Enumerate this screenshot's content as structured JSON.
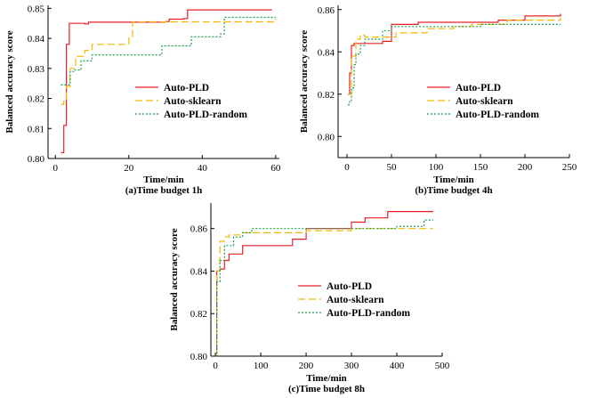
{
  "chart_data": [
    {
      "type": "line",
      "caption": "(a)Time budget 1h",
      "xlabel": "Time/min",
      "ylabel": "Balanced accuracy score",
      "xlim": [
        -2,
        61
      ],
      "ylim": [
        0.8,
        0.851
      ],
      "xticks": [
        0,
        20,
        40,
        60
      ],
      "yticks": [
        0.8,
        0.81,
        0.82,
        0.83,
        0.84,
        0.85
      ],
      "ytick_labels": [
        "0.80",
        "0.81",
        "0.82",
        "0.83",
        "0.84",
        "0.85"
      ],
      "legend_position": "center-right",
      "series": [
        {
          "name": "Auto-PLD",
          "color": "#e8202a",
          "dash": "solid",
          "x": [
            1.5,
            2.3,
            3.0,
            3.8,
            8,
            9,
            30,
            31,
            35,
            36,
            59
          ],
          "y": [
            0.802,
            0.811,
            0.838,
            0.845,
            0.8448,
            0.8454,
            0.8456,
            0.8464,
            0.8466,
            0.8495,
            0.8495
          ]
        },
        {
          "name": "Auto-sklearn",
          "color": "#f5b800",
          "dash": "dash",
          "x": [
            1.5,
            2.3,
            3.0,
            4.0,
            5.5,
            8,
            10,
            13,
            20,
            21,
            45,
            60
          ],
          "y": [
            0.818,
            0.819,
            0.824,
            0.83,
            0.834,
            0.836,
            0.838,
            0.838,
            0.84,
            0.8455,
            0.8455,
            0.8465
          ]
        },
        {
          "name": "Auto-PLD-random",
          "color": "#1a9e4a",
          "dash": "dot",
          "x": [
            1.5,
            3.0,
            4.0,
            5.0,
            7.0,
            10,
            28,
            29,
            36,
            37,
            45,
            46,
            60
          ],
          "y": [
            0.8245,
            0.8245,
            0.829,
            0.8295,
            0.8325,
            0.8345,
            0.8345,
            0.8375,
            0.8375,
            0.8405,
            0.8415,
            0.847,
            0.847
          ]
        }
      ]
    },
    {
      "type": "line",
      "caption": "(b)Time budget 4h",
      "xlabel": "Time/min",
      "ylabel": "Balanced accuracy score",
      "xlim": [
        -10,
        250
      ],
      "ylim": [
        0.79,
        0.862
      ],
      "xticks": [
        0,
        50,
        100,
        150,
        200,
        250
      ],
      "yticks": [
        0.8,
        0.82,
        0.84,
        0.86
      ],
      "ytick_labels": [
        "0.80",
        "0.82",
        "0.84",
        "0.86"
      ],
      "legend_position": "center-right",
      "series": [
        {
          "name": "Auto-PLD",
          "color": "#e8202a",
          "dash": "solid",
          "x": [
            1,
            3,
            5,
            8,
            10,
            40,
            50,
            80,
            120,
            170,
            200,
            240
          ],
          "y": [
            0.82,
            0.83,
            0.843,
            0.844,
            0.844,
            0.845,
            0.853,
            0.854,
            0.854,
            0.855,
            0.857,
            0.858
          ]
        },
        {
          "name": "Auto-sklearn",
          "color": "#f5b800",
          "dash": "dash",
          "x": [
            1,
            5,
            10,
            15,
            20,
            40,
            55,
            70,
            90,
            120,
            140,
            180,
            240
          ],
          "y": [
            0.82,
            0.838,
            0.846,
            0.848,
            0.847,
            0.847,
            0.849,
            0.849,
            0.851,
            0.852,
            0.853,
            0.855,
            0.856
          ]
        },
        {
          "name": "Auto-PLD-random",
          "color": "#1a9e4a",
          "dash": "dot",
          "x": [
            1,
            3,
            5,
            8,
            10,
            15,
            20,
            40,
            50,
            100,
            150,
            240
          ],
          "y": [
            0.815,
            0.817,
            0.823,
            0.834,
            0.839,
            0.843,
            0.846,
            0.85,
            0.852,
            0.852,
            0.853,
            0.853
          ]
        }
      ]
    },
    {
      "type": "line",
      "caption": "(c)Time budget 8h",
      "xlabel": "Time/min",
      "ylabel": "Balanced accuracy score",
      "xlim": [
        -10,
        500
      ],
      "ylim": [
        0.8,
        0.872
      ],
      "xticks": [
        0,
        100,
        200,
        300,
        400,
        500
      ],
      "yticks": [
        0.8,
        0.82,
        0.84,
        0.86
      ],
      "ytick_labels": [
        "0.80",
        "0.82",
        "0.84",
        "0.86"
      ],
      "legend_position": "center-right",
      "series": [
        {
          "name": "Auto-PLD",
          "color": "#e8202a",
          "dash": "solid",
          "x": [
            1,
            3,
            10,
            20,
            30,
            50,
            60,
            110,
            170,
            200,
            280,
            300,
            330,
            380,
            470,
            480
          ],
          "y": [
            0.8,
            0.84,
            0.841,
            0.845,
            0.848,
            0.848,
            0.852,
            0.852,
            0.855,
            0.86,
            0.86,
            0.863,
            0.865,
            0.868,
            0.868,
            0.868
          ]
        },
        {
          "name": "Auto-sklearn",
          "color": "#f5b800",
          "dash": "dash",
          "x": [
            1,
            3,
            10,
            20,
            30,
            60,
            200,
            300,
            480
          ],
          "y": [
            0.8,
            0.84,
            0.854,
            0.856,
            0.857,
            0.858,
            0.859,
            0.86,
            0.86
          ]
        },
        {
          "name": "Auto-PLD-random",
          "color": "#1a9e4a",
          "dash": "dot",
          "x": [
            1,
            3,
            10,
            20,
            40,
            60,
            80,
            200,
            400,
            460,
            480
          ],
          "y": [
            0.8,
            0.835,
            0.845,
            0.852,
            0.856,
            0.858,
            0.86,
            0.86,
            0.861,
            0.864,
            0.864
          ]
        }
      ]
    }
  ]
}
